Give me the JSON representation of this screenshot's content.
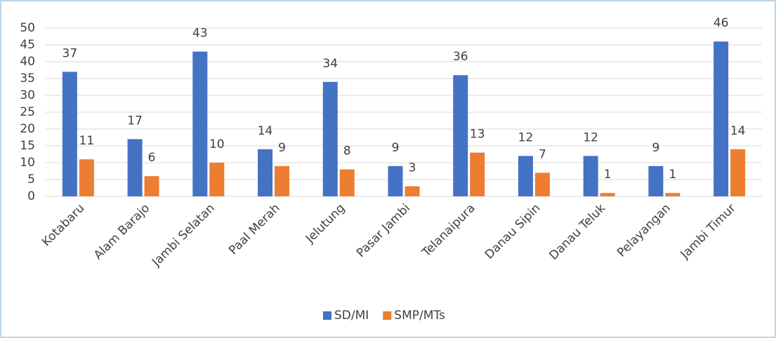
{
  "chart_data": {
    "type": "bar",
    "categories": [
      "Kotabaru",
      "Alam Barajo",
      "Jambi Selatan",
      "Paal Merah",
      "Jelutung",
      "Pasar Jambi",
      "Telanaipura",
      "Danau Sipin",
      "Danau Teluk",
      "Pelayangan",
      "Jambi Timur"
    ],
    "series": [
      {
        "name": "SD/MI",
        "color": "#4472c4",
        "values": [
          37,
          17,
          43,
          14,
          34,
          9,
          36,
          12,
          12,
          9,
          46
        ]
      },
      {
        "name": "SMP/MTs",
        "color": "#ed7d31",
        "values": [
          11,
          6,
          10,
          9,
          8,
          3,
          13,
          7,
          1,
          1,
          14
        ]
      }
    ],
    "ylim": [
      0,
      50
    ],
    "yticks": [
      0,
      5,
      10,
      15,
      20,
      25,
      30,
      35,
      40,
      45,
      50
    ],
    "grid": true,
    "legend": "bottom"
  }
}
